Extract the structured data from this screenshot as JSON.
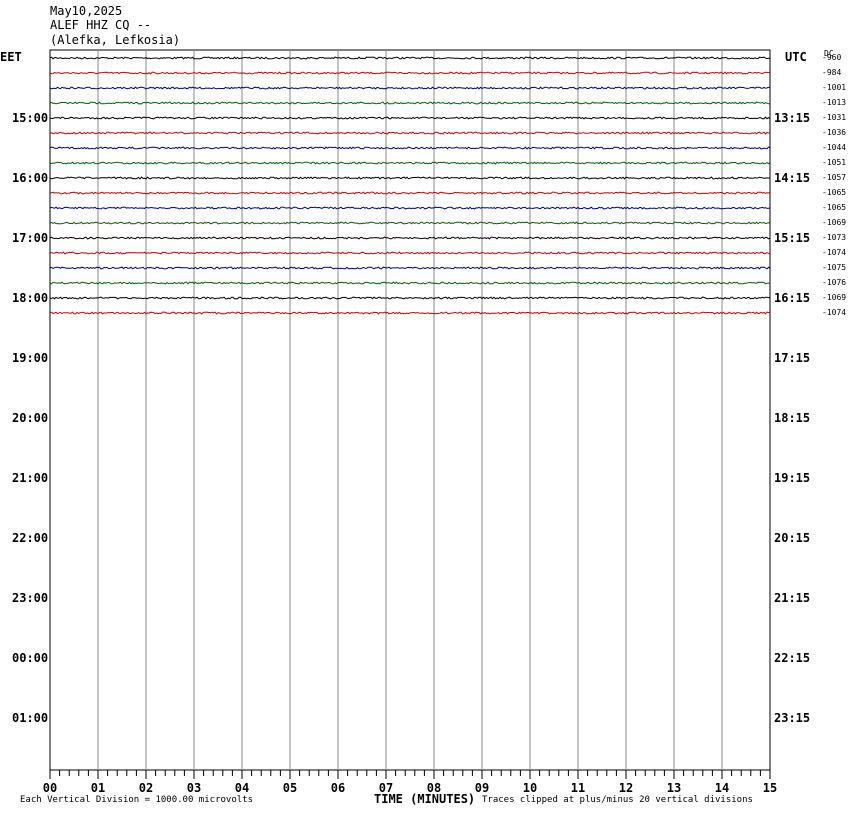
{
  "header": {
    "date": "May10,2025",
    "station": "ALEF HHZ CQ --",
    "location": "(Alefka, Lefkosia)"
  },
  "left_tz": "EET",
  "right_tz": "UTC",
  "dc_label": "DC",
  "chart_data": {
    "type": "line",
    "title": "ALEF HHZ CQ --",
    "xlabel": "TIME (MINUTES)",
    "xlim": [
      0,
      15
    ],
    "x_ticks": [
      "00",
      "01",
      "02",
      "03",
      "04",
      "05",
      "06",
      "07",
      "08",
      "09",
      "10",
      "11",
      "12",
      "13",
      "14",
      "15"
    ],
    "left_hour_labels": [
      "15:00",
      "16:00",
      "17:00",
      "18:00",
      "19:00",
      "20:00",
      "21:00",
      "22:00",
      "23:00",
      "00:00",
      "01:00"
    ],
    "right_hour_labels": [
      "13:15",
      "14:15",
      "15:15",
      "16:15",
      "17:15",
      "18:15",
      "19:15",
      "20:15",
      "21:15",
      "22:15",
      "23:15"
    ],
    "trace_colors": [
      "#000000",
      "#cc0000",
      "#00008b",
      "#006400"
    ],
    "dc_offsets": [
      -960,
      -984,
      -1001,
      -1013,
      -1031,
      -1036,
      -1044,
      -1051,
      -1057,
      -1065,
      -1065,
      -1069,
      -1073,
      -1074,
      -1075,
      -1076,
      -1069,
      -1074
    ],
    "vertical_division_note": "Each Vertical Division = 1000.00 microvolts",
    "clip_note": "Traces clipped at plus/minus 20 vertical divisions"
  }
}
